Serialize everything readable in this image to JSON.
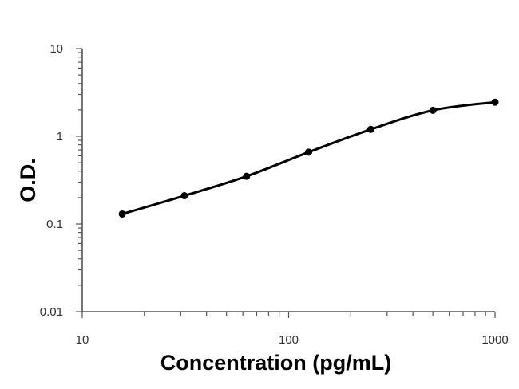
{
  "chart_data": {
    "type": "line",
    "xlabel": "Concentration (pg/mL)",
    "ylabel": "O.D.",
    "x_scale": "log",
    "y_scale": "log",
    "xlim": [
      10,
      1000
    ],
    "ylim": [
      0.01,
      10
    ],
    "x_ticks": [
      "10",
      "100",
      "1000"
    ],
    "y_ticks": [
      "0.01",
      "0.1",
      "1",
      "10"
    ],
    "grid": false,
    "legend": "none",
    "series": [
      {
        "x": [
          15.625,
          31.25,
          62.5,
          125,
          250,
          500,
          1000
        ],
        "y": [
          0.13,
          0.21,
          0.35,
          0.66,
          1.2,
          1.98,
          2.45
        ]
      }
    ]
  }
}
